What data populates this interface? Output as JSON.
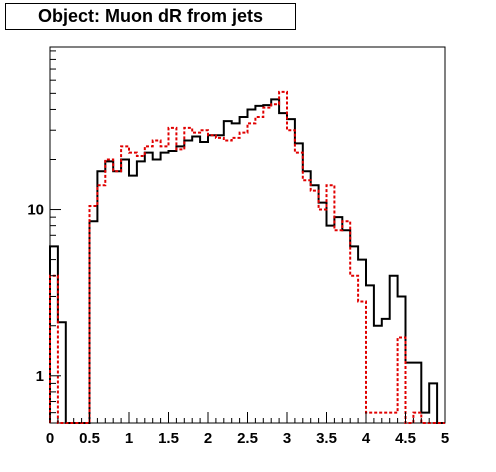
{
  "chart_data": {
    "type": "histogram",
    "title": "Object: Muon dR from jets",
    "xlabel": "",
    "ylabel": "",
    "xlim": [
      0,
      5
    ],
    "ylim": [
      0.52,
      95
    ],
    "y_scale": "log",
    "x_ticks": [
      "0",
      "0.5",
      "1",
      "1.5",
      "2",
      "2.5",
      "3",
      "3.5",
      "4",
      "4.5",
      "5"
    ],
    "y_ticks": [
      "1",
      "10"
    ],
    "grid": false,
    "legend": "none",
    "bin_width": 0.1,
    "bin_edges_start": 0,
    "series": [
      {
        "style": "solid",
        "color": "#000000",
        "values": [
          6.0,
          2.1,
          0,
          0,
          0,
          8.5,
          17.0,
          19.5,
          17.0,
          20.0,
          16.0,
          19.5,
          22.0,
          20.0,
          22.0,
          22.5,
          24.0,
          26.0,
          27.5,
          25.5,
          28.0,
          28.0,
          34.0,
          33.0,
          36.0,
          40.0,
          42.0,
          42.5,
          46.0,
          38.0,
          35.0,
          25.0,
          17.0,
          14.0,
          11.0,
          8.0,
          9.0,
          7.5,
          6.0,
          5.0,
          3.5,
          2.0,
          2.2,
          4.0,
          3.0,
          1.2,
          1.2,
          0.6,
          0.9,
          0
        ],
        "nonzero_mask": [
          1,
          1,
          0,
          0,
          0,
          1,
          1,
          1,
          1,
          1,
          1,
          1,
          1,
          1,
          1,
          1,
          1,
          1,
          1,
          1,
          1,
          1,
          1,
          1,
          1,
          1,
          1,
          1,
          1,
          1,
          1,
          1,
          1,
          1,
          1,
          1,
          1,
          1,
          1,
          1,
          1,
          1,
          1,
          1,
          1,
          1,
          1,
          1,
          1,
          0
        ]
      },
      {
        "style": "dotted",
        "color": "#e00000",
        "values": [
          4.0,
          0,
          0,
          0,
          0,
          10.5,
          14.0,
          20.0,
          17.0,
          24.0,
          22.0,
          21.0,
          24.0,
          26.0,
          24.0,
          31.0,
          23.0,
          31.0,
          29.0,
          30.0,
          28.0,
          27.0,
          26.0,
          27.0,
          29.0,
          33.0,
          36.0,
          41.0,
          43.0,
          51.0,
          30.0,
          22.0,
          15.0,
          13.0,
          10.0,
          14.0,
          7.5,
          8.5,
          4.0,
          2.8,
          0.6,
          0.6,
          0.6,
          0.6,
          1.7,
          0,
          0.6,
          0,
          0,
          0
        ],
        "nonzero_mask": [
          1,
          0,
          0,
          0,
          0,
          1,
          1,
          1,
          1,
          1,
          1,
          1,
          1,
          1,
          1,
          1,
          1,
          1,
          1,
          1,
          1,
          1,
          1,
          1,
          1,
          1,
          1,
          1,
          1,
          1,
          1,
          1,
          1,
          1,
          1,
          1,
          1,
          1,
          1,
          1,
          1,
          1,
          1,
          1,
          1,
          0,
          1,
          0,
          0,
          0
        ]
      }
    ]
  }
}
